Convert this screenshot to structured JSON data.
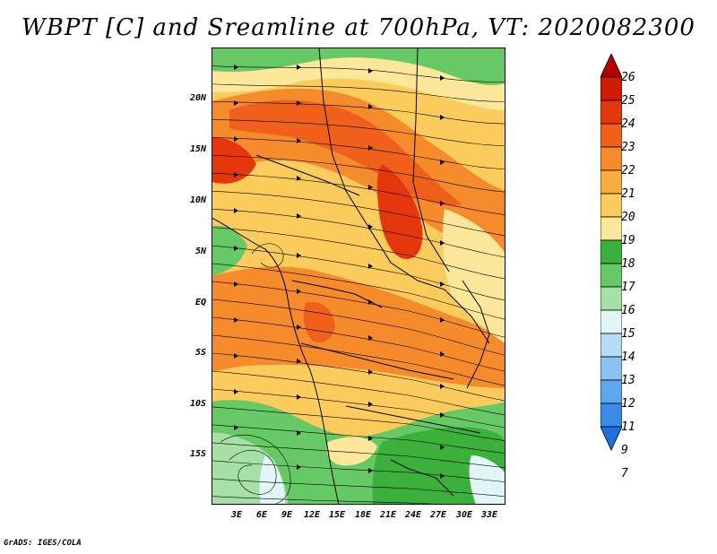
{
  "title": "WBPT [C] and Sreamline at 700hPa, VT: 2020082300",
  "credit": "GrADS: IGES/COLA",
  "map": {
    "lat_labels": [
      "20N",
      "15N",
      "10N",
      "5N",
      "EQ",
      "5S",
      "10S",
      "15S"
    ],
    "lon_labels": [
      "3E",
      "6E",
      "9E",
      "12E",
      "15E",
      "18E",
      "21E",
      "24E",
      "27E",
      "30E",
      "33E"
    ]
  },
  "colorbar": {
    "labels": [
      "26",
      "25",
      "24",
      "23",
      "22",
      "21",
      "20",
      "19",
      "18",
      "17",
      "16",
      "15",
      "14",
      "13",
      "12",
      "11",
      "9",
      "7"
    ],
    "colors": [
      "#b40000",
      "#d01c00",
      "#e6370c",
      "#f0601a",
      "#f58b2a",
      "#f9ad3e",
      "#fbcb5c",
      "#fde79a",
      "#3bb03b",
      "#66c966",
      "#a6e0a6",
      "#e2f6f8",
      "#b6dcf6",
      "#8cc2f2",
      "#5ea6ee",
      "#3a8ae6",
      "#1f6fde"
    ]
  }
}
